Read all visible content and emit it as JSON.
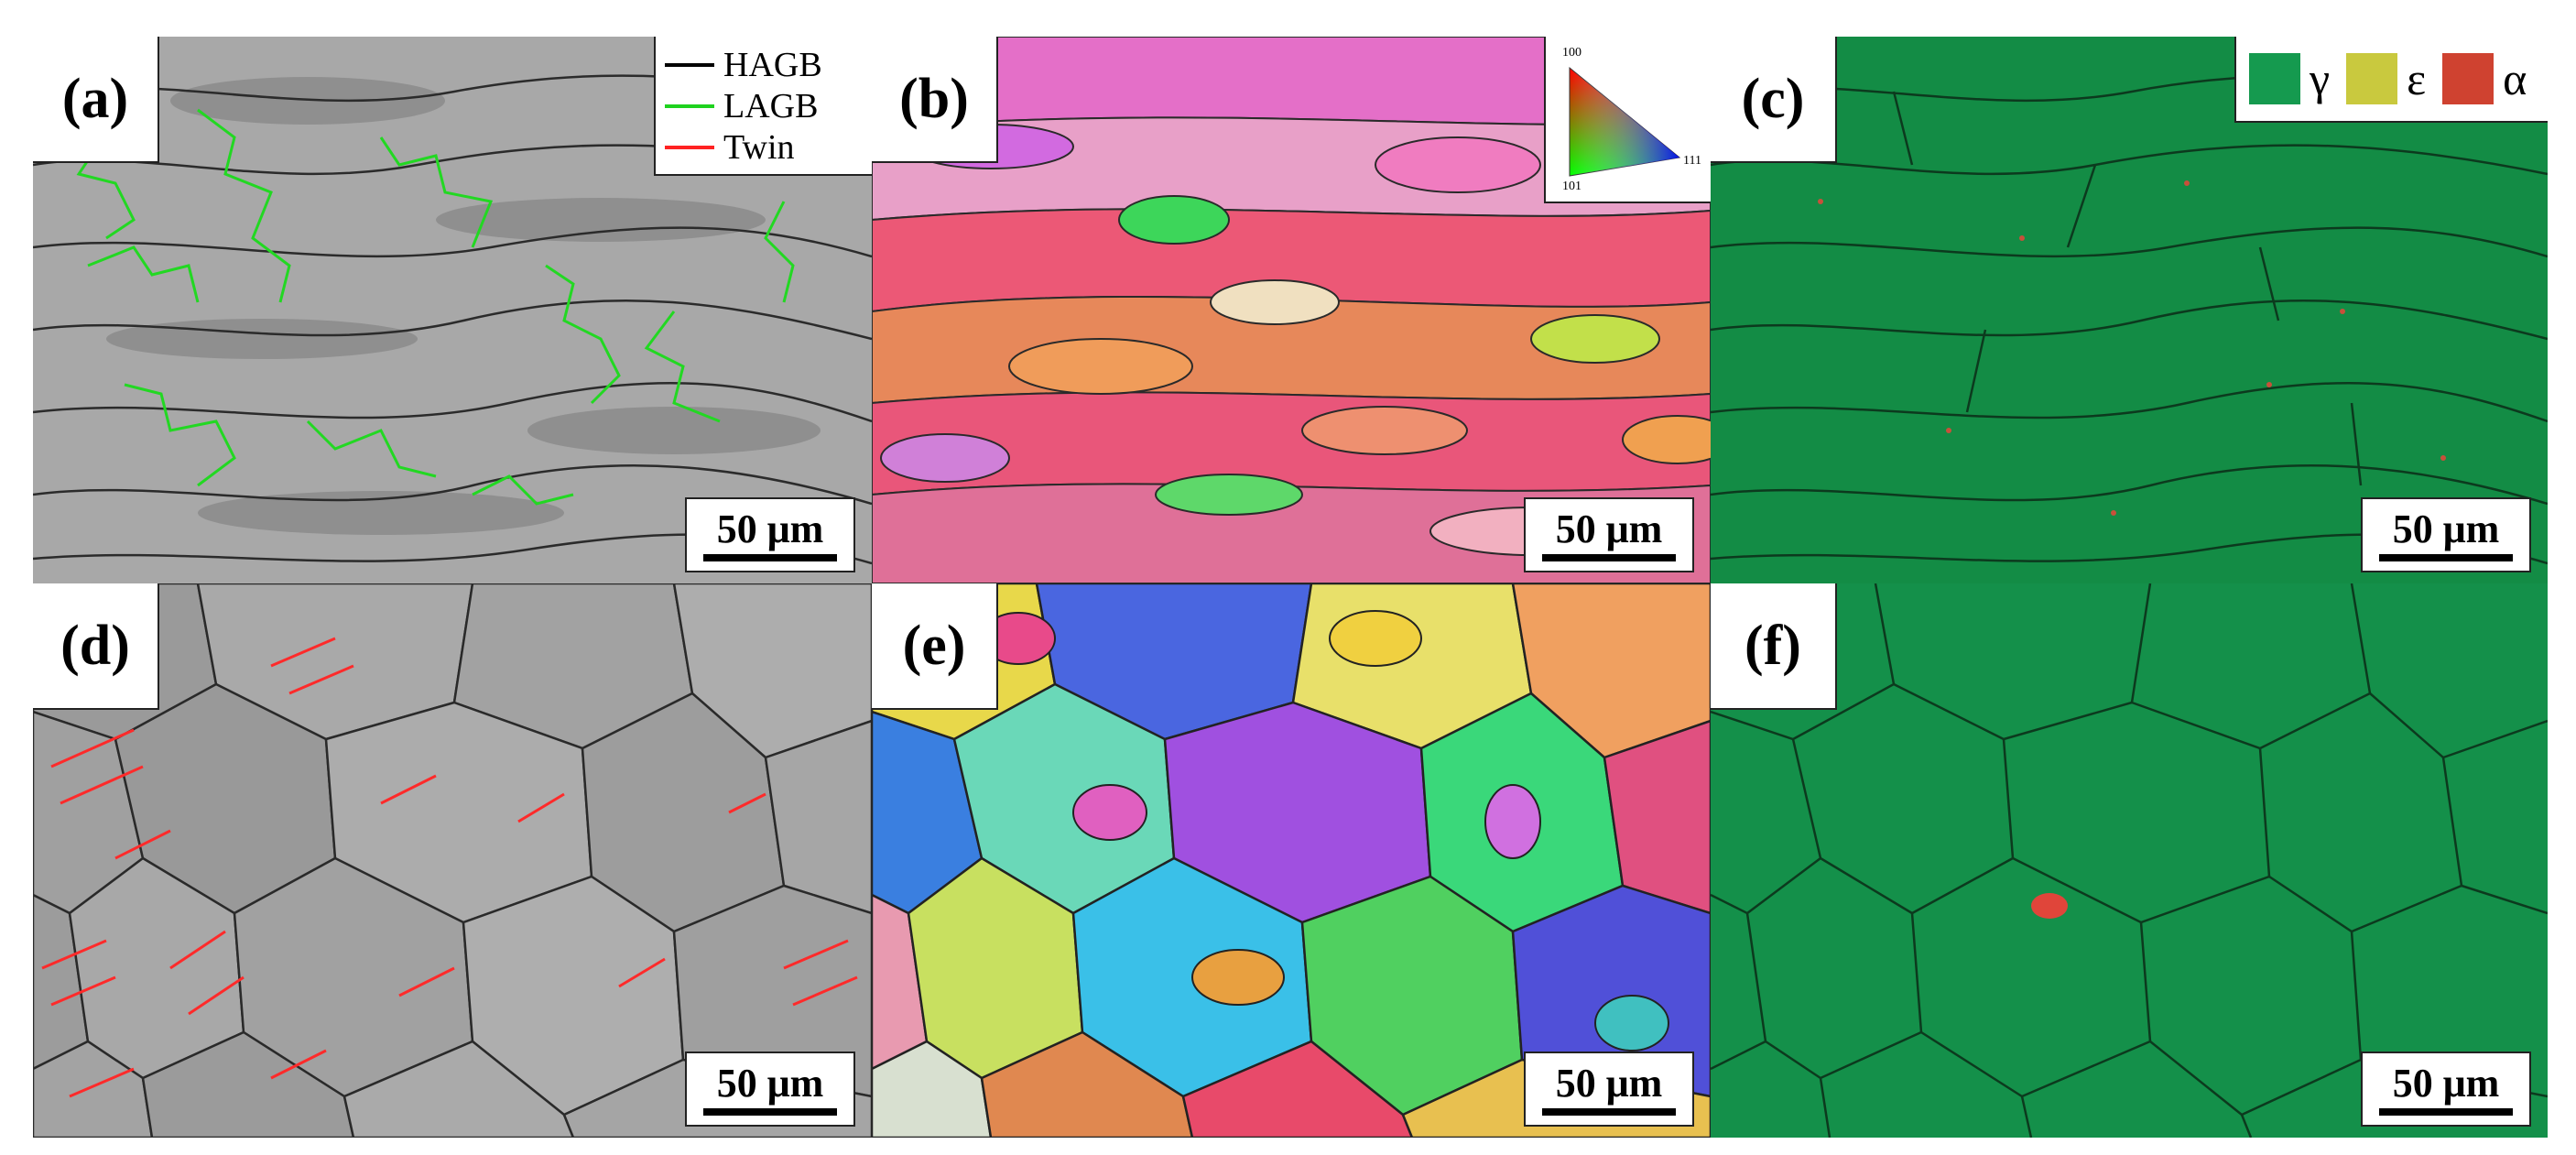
{
  "panels": [
    {
      "label": "(a)",
      "scale": "50 μm"
    },
    {
      "label": "(b)",
      "scale": "50 μm"
    },
    {
      "label": "(c)",
      "scale": "50 μm"
    },
    {
      "label": "(d)",
      "scale": "50 μm"
    },
    {
      "label": "(e)",
      "scale": "50 μm"
    },
    {
      "label": "(f)",
      "scale": "50 μm"
    }
  ],
  "legend_boundaries": [
    {
      "label": "HAGB",
      "color": "#000000"
    },
    {
      "label": "LAGB",
      "color": "#1fd21f"
    },
    {
      "label": "Twin",
      "color": "#ff2222"
    }
  ],
  "ipf_key": {
    "top": "100",
    "bottom_left": "101",
    "right": "111"
  },
  "legend_phases": [
    {
      "symbol": "γ",
      "color": "#159a4f"
    },
    {
      "symbol": "ε",
      "color": "#c9c93e"
    },
    {
      "symbol": "α",
      "color": "#cf4230"
    }
  ]
}
